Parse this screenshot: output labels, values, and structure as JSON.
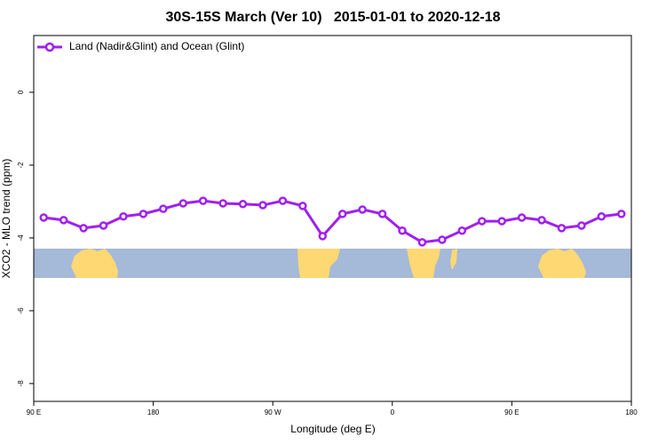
{
  "chart_data": {
    "type": "line",
    "title": "30S-15S March (Ver 10)   2015-01-01 to 2020-12-18",
    "x_label": "Longitude (deg E)",
    "y_label": "XCO2 - MLO trend (ppm)",
    "x": [
      97.5,
      112.5,
      127.5,
      142.5,
      157.5,
      172.5,
      187.5,
      202.5,
      217.5,
      232.5,
      247.5,
      262.5,
      277.5,
      292.5,
      307.5,
      322.5,
      337.5,
      352.5,
      367.5,
      382.5,
      397.5,
      412.5,
      427.5,
      442.5,
      457.5,
      472.5,
      487.5,
      502.5,
      517.5,
      532.5
    ],
    "series": [
      {
        "name": "Land (Nadir&Glint) and Ocean (Glint)",
        "color": "#a020f0",
        "values": [
          -3.44,
          -3.51,
          -3.73,
          -3.66,
          -3.41,
          -3.34,
          -3.2,
          -3.05,
          -2.98,
          -3.05,
          -3.07,
          -3.1,
          -2.98,
          -3.12,
          -3.95,
          -3.34,
          -3.22,
          -3.34,
          -3.8,
          -4.12,
          -4.05,
          -3.8,
          -3.54,
          -3.54,
          -3.44,
          -3.51,
          -3.73,
          -3.66,
          -3.41,
          -3.34
        ]
      }
    ],
    "xlim": [
      90,
      540
    ],
    "xticks": [
      {
        "value": 90,
        "label": "90 E"
      },
      {
        "value": 180,
        "label": "180"
      },
      {
        "value": 270,
        "label": "90 W"
      },
      {
        "value": 360,
        "label": "0"
      },
      {
        "value": 450,
        "label": "90 E"
      },
      {
        "value": 540,
        "label": "180"
      }
    ],
    "ylim": [
      -8.49,
      1.56
    ],
    "yticks": [
      0,
      -2,
      -4,
      -6,
      -8
    ],
    "legend": "top-left"
  }
}
